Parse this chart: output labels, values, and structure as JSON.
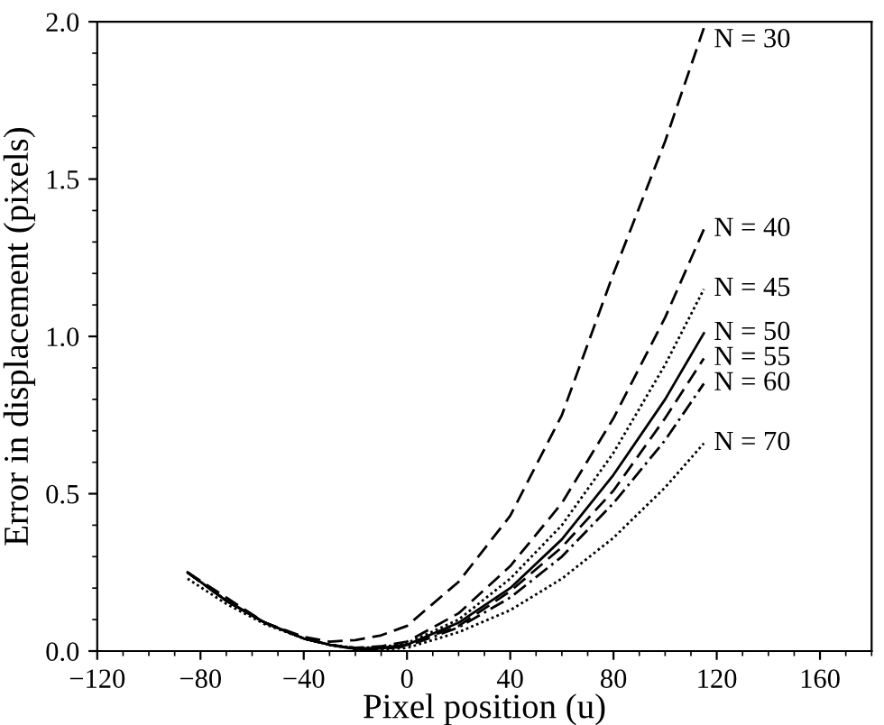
{
  "chart_data": {
    "type": "line",
    "xlabel": "Pixel position (u)",
    "ylabel": "Error in displacement (pixels)",
    "xlim": [
      -120,
      180
    ],
    "xticks": [
      {
        "value": -120,
        "label": "−120"
      },
      {
        "value": -80,
        "label": "−80"
      },
      {
        "value": -40,
        "label": "−40"
      },
      0,
      40,
      80,
      120,
      160
    ],
    "ylim": [
      0,
      2
    ],
    "yticks": [
      {
        "value": 0,
        "label": "0.0"
      },
      0.5,
      {
        "value": 1,
        "label": "1.0"
      },
      1.5,
      {
        "value": 2,
        "label": "2.0"
      }
    ],
    "grid": false,
    "legend": false,
    "marker": "none",
    "x": [
      -85,
      -70,
      -55,
      -40,
      -30,
      -20,
      -10,
      0,
      20,
      40,
      60,
      80,
      100,
      115
    ],
    "series": [
      {
        "name": "N = 30",
        "color": "#000000",
        "line_style": "dashed",
        "values": [
          0.25,
          0.17,
          0.09,
          0.045,
          0.03,
          0.035,
          0.05,
          0.08,
          0.22,
          0.43,
          0.75,
          1.2,
          1.62,
          1.98
        ]
      },
      {
        "name": "N = 40",
        "color": "#000000",
        "line_style": "dashed",
        "values": [
          0.25,
          0.16,
          0.09,
          0.04,
          0.02,
          0.01,
          0.015,
          0.03,
          0.12,
          0.27,
          0.47,
          0.74,
          1.06,
          1.34
        ]
      },
      {
        "name": "N = 45",
        "color": "#000000",
        "line_style": "dotted",
        "values": [
          0.25,
          0.16,
          0.09,
          0.04,
          0.02,
          0.01,
          0.012,
          0.025,
          0.1,
          0.23,
          0.4,
          0.63,
          0.91,
          1.15
        ]
      },
      {
        "name": "N = 50",
        "color": "#000000",
        "line_style": "solid",
        "values": [
          0.25,
          0.16,
          0.09,
          0.04,
          0.02,
          0.008,
          0.01,
          0.02,
          0.09,
          0.2,
          0.355,
          0.56,
          0.8,
          1.01
        ]
      },
      {
        "name": "N = 55",
        "color": "#000000",
        "line_style": "dashed",
        "values": [
          0.25,
          0.16,
          0.09,
          0.04,
          0.02,
          0.007,
          0.008,
          0.02,
          0.08,
          0.19,
          0.33,
          0.51,
          0.74,
          0.93
        ]
      },
      {
        "name": "N = 60",
        "color": "#000000",
        "line_style": "dashdot",
        "values": [
          0.25,
          0.16,
          0.09,
          0.04,
          0.02,
          0.006,
          0.006,
          0.015,
          0.075,
          0.17,
          0.3,
          0.47,
          0.67,
          0.85
        ]
      },
      {
        "name": "N = 70",
        "color": "#000000",
        "line_style": "dotted",
        "values": [
          0.23,
          0.15,
          0.085,
          0.04,
          0.02,
          0.006,
          0.005,
          0.01,
          0.06,
          0.13,
          0.23,
          0.36,
          0.52,
          0.66
        ]
      }
    ]
  }
}
